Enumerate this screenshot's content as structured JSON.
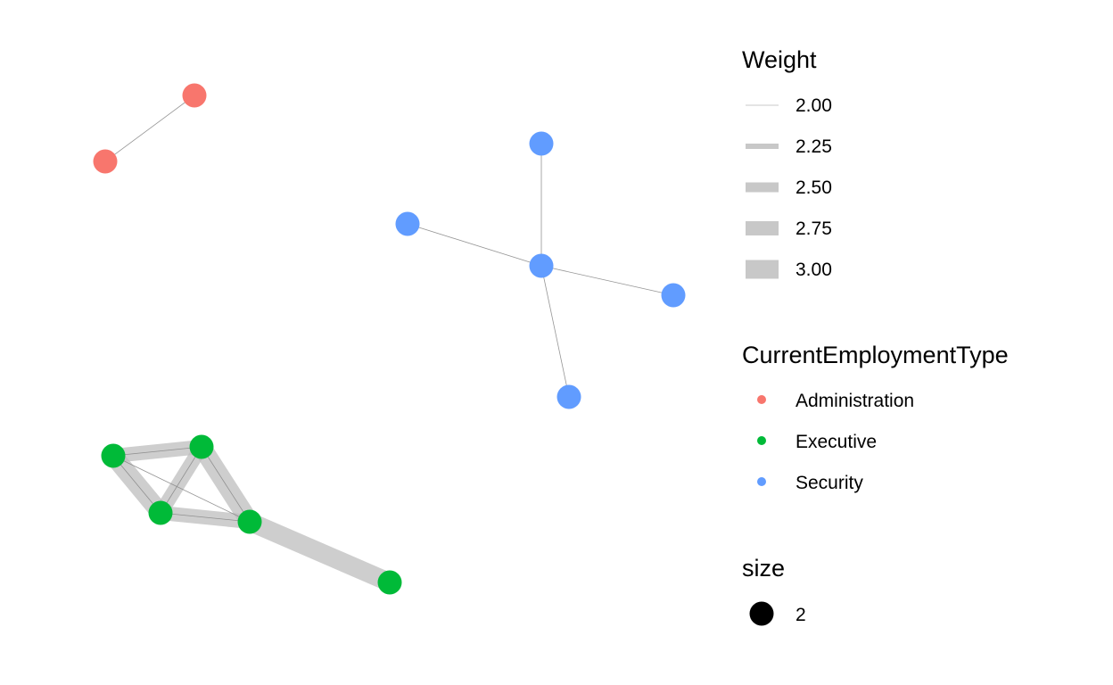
{
  "graph": {
    "node_colors": {
      "Administration": "#F8766D",
      "Executive": "#00BA38",
      "Security": "#619CFF"
    },
    "edge_color": "#bdbdbd",
    "nodes": [
      {
        "id": "a1",
        "group": "Administration"
      },
      {
        "id": "a2",
        "group": "Administration"
      },
      {
        "id": "s1",
        "group": "Security"
      },
      {
        "id": "s2",
        "group": "Security"
      },
      {
        "id": "s3",
        "group": "Security"
      },
      {
        "id": "s4",
        "group": "Security"
      },
      {
        "id": "s5",
        "group": "Security"
      },
      {
        "id": "s6",
        "group": "Security"
      },
      {
        "id": "e1",
        "group": "Executive"
      },
      {
        "id": "e2",
        "group": "Executive"
      },
      {
        "id": "e3",
        "group": "Executive"
      },
      {
        "id": "e4",
        "group": "Executive"
      },
      {
        "id": "e5",
        "group": "Executive"
      }
    ],
    "edges": [
      {
        "source": "a1",
        "target": "a2",
        "weight": 2.0
      },
      {
        "source": "s6",
        "target": "s1",
        "weight": 2.0
      },
      {
        "source": "s6",
        "target": "s2",
        "weight": 2.0
      },
      {
        "source": "s6",
        "target": "s3",
        "weight": 2.0
      },
      {
        "source": "s6",
        "target": "s4",
        "weight": 2.0
      },
      {
        "source": "e1",
        "target": "e2",
        "weight": 2.75
      },
      {
        "source": "e1",
        "target": "e2",
        "weight": 2.0
      },
      {
        "source": "e1",
        "target": "e3",
        "weight": 3.0
      },
      {
        "source": "e1",
        "target": "e3",
        "weight": 2.0
      },
      {
        "source": "e1",
        "target": "e4",
        "weight": 2.0
      },
      {
        "source": "e2",
        "target": "e3",
        "weight": 2.75
      },
      {
        "source": "e2",
        "target": "e3",
        "weight": 2.0
      },
      {
        "source": "e2",
        "target": "e4",
        "weight": 3.0
      },
      {
        "source": "e2",
        "target": "e4",
        "weight": 2.0
      },
      {
        "source": "e3",
        "target": "e4",
        "weight": 2.75
      },
      {
        "source": "e3",
        "target": "e4",
        "weight": 2.0
      },
      {
        "source": "e4",
        "target": "e5",
        "weight": 3.0
      }
    ]
  },
  "legend": {
    "weight": {
      "title": "Weight",
      "entries": [
        {
          "label": "2.00",
          "value": 2.0
        },
        {
          "label": "2.25",
          "value": 2.25
        },
        {
          "label": "2.50",
          "value": 2.5
        },
        {
          "label": "2.75",
          "value": 2.75
        },
        {
          "label": "3.00",
          "value": 3.0
        }
      ]
    },
    "employment_type": {
      "title": "CurrentEmploymentType",
      "entries": [
        {
          "label": "Administration",
          "color": "#F8766D"
        },
        {
          "label": "Executive",
          "color": "#00BA38"
        },
        {
          "label": "Security",
          "color": "#619CFF"
        }
      ]
    },
    "size": {
      "title": "size",
      "entries": [
        {
          "label": "2",
          "color": "#000000"
        }
      ]
    }
  }
}
